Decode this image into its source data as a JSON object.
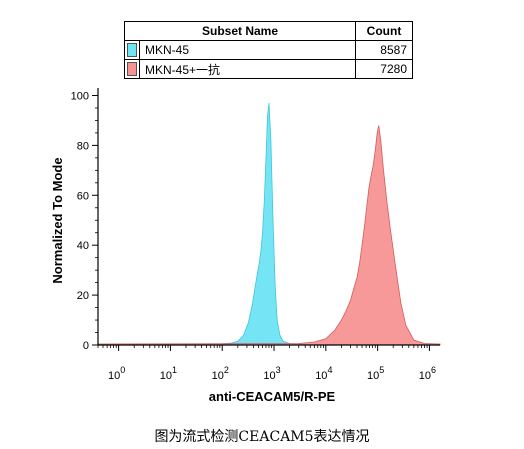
{
  "legend_table": {
    "header": {
      "name": "Subset Name",
      "count": "Count"
    },
    "rows": [
      {
        "name": "MKN-45",
        "count": "8587",
        "color": "#6ee4f5"
      },
      {
        "name": "MKN-45+一抗",
        "count": "7280",
        "color": "#f79393"
      }
    ]
  },
  "caption": "图为流式检测CEACAM5表达情况",
  "chart_data": {
    "type": "area",
    "xlabel": "anti-CEACAM5/R-PE",
    "ylabel": "Normalized To Mode",
    "xscale": "log",
    "xlim": [
      0.4,
      1600000
    ],
    "ylim": [
      0,
      103
    ],
    "x_ticks": [
      {
        "base": "10",
        "exp": "0",
        "value": 1
      },
      {
        "base": "10",
        "exp": "1",
        "value": 10
      },
      {
        "base": "10",
        "exp": "2",
        "value": 100
      },
      {
        "base": "10",
        "exp": "3",
        "value": 1000
      },
      {
        "base": "10",
        "exp": "4",
        "value": 10000
      },
      {
        "base": "10",
        "exp": "5",
        "value": 100000
      },
      {
        "base": "10",
        "exp": "6",
        "value": 1000000
      }
    ],
    "y_ticks": [
      "0",
      "20",
      "40",
      "60",
      "80",
      "100"
    ],
    "series": [
      {
        "name": "MKN-45",
        "color": "#6ee4f5",
        "stroke": "#3cc6dc",
        "x": [
          0.4,
          100,
          150,
          200,
          260,
          320,
          380,
          430,
          480,
          520,
          560,
          600,
          650,
          700,
          750,
          800,
          870,
          950,
          1050,
          1150,
          1300,
          1500,
          2000,
          4000,
          1600000
        ],
        "y": [
          0.3,
          0.5,
          0.8,
          1.5,
          4,
          9,
          16,
          23,
          29,
          33,
          38,
          45,
          58,
          75,
          92,
          97,
          82,
          52,
          24,
          10,
          4,
          1.5,
          0.6,
          0.3,
          0.3
        ]
      },
      {
        "name": "MKN-45+一抗",
        "color": "#f79393",
        "stroke": "#d45c5c",
        "x": [
          0.4,
          3000,
          6000,
          10000,
          15000,
          20000,
          25000,
          30000,
          35000,
          40000,
          45000,
          50000,
          56000,
          62000,
          68000,
          75000,
          82000,
          90000,
          98000,
          105000,
          115000,
          130000,
          150000,
          180000,
          220000,
          280000,
          350000,
          500000,
          800000,
          1600000
        ],
        "y": [
          0.4,
          0.6,
          1.2,
          2.5,
          6,
          10,
          14,
          18,
          23,
          27,
          33,
          40,
          48,
          56,
          63,
          68,
          72,
          78,
          85,
          88,
          82,
          70,
          58,
          45,
          32,
          17,
          8,
          2,
          0.6,
          0.4
        ]
      }
    ],
    "legend": "top"
  }
}
